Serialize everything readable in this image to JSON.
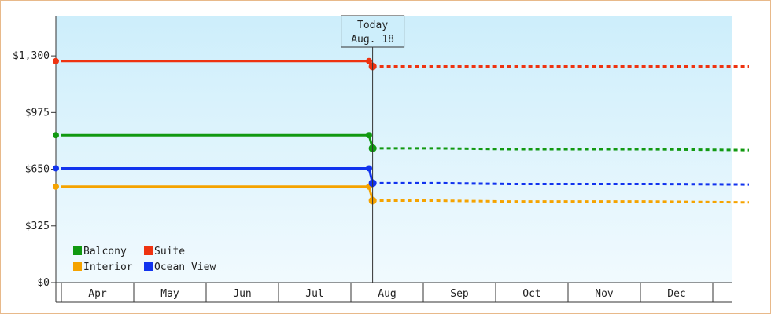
{
  "chart_data": {
    "type": "line",
    "yticks": [
      "$0",
      "$325",
      "$650",
      "$975",
      "$1,300"
    ],
    "ytick_values": [
      0,
      325,
      650,
      975,
      1300
    ],
    "ylim": [
      0,
      1530
    ],
    "months": [
      "Apr",
      "May",
      "Jun",
      "Jul",
      "Aug",
      "Sep",
      "Oct",
      "Nov",
      "Dec"
    ],
    "today": {
      "line1": "Today",
      "line2": "Aug. 18",
      "x": 4.3
    },
    "grid": false,
    "legend_placement": "bottom-left",
    "series": [
      {
        "name": "Balcony",
        "color": "#119911",
        "history": [
          [
            0,
            845
          ],
          [
            4.25,
            845
          ]
        ],
        "forecast": [
          [
            4.3,
            770
          ],
          [
            5.2,
            770
          ],
          [
            6.2,
            765
          ],
          [
            8.1,
            765
          ],
          [
            9.5,
            760
          ]
        ]
      },
      {
        "name": "Suite",
        "color": "#ee3311",
        "history": [
          [
            0,
            1270
          ],
          [
            4.25,
            1270
          ]
        ],
        "forecast": [
          [
            4.3,
            1240
          ],
          [
            5.2,
            1240
          ],
          [
            6.2,
            1240
          ],
          [
            8.1,
            1240
          ],
          [
            9.5,
            1240
          ]
        ]
      },
      {
        "name": "Interior",
        "color": "#f5a300",
        "history": [
          [
            0,
            550
          ],
          [
            4.25,
            550
          ]
        ],
        "forecast": [
          [
            4.3,
            470
          ],
          [
            5.2,
            470
          ],
          [
            6.2,
            465
          ],
          [
            8.1,
            465
          ],
          [
            9.5,
            460
          ]
        ]
      },
      {
        "name": "Ocean View",
        "color": "#1133ee",
        "history": [
          [
            0,
            655
          ],
          [
            4.25,
            655
          ]
        ],
        "forecast": [
          [
            4.3,
            570
          ],
          [
            5.2,
            570
          ],
          [
            6.2,
            565
          ],
          [
            8.1,
            565
          ],
          [
            9.5,
            562
          ]
        ]
      }
    ]
  }
}
